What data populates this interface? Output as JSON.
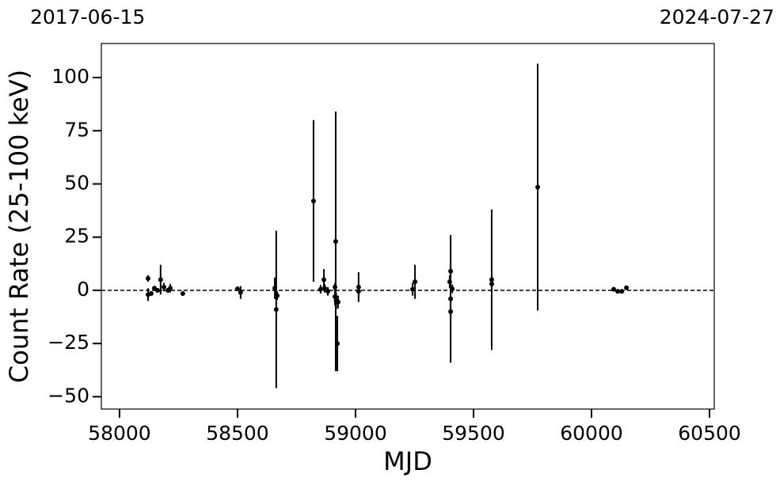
{
  "chart_data": {
    "type": "scatter",
    "top_left_label": "2017-06-15",
    "top_right_label": "2024-07-27",
    "x_label": "MJD",
    "y_label": "Count Rate (25-100 keV)",
    "x": [
      58121,
      58121,
      58134,
      58148,
      58161,
      58174,
      58188,
      58205,
      58215,
      58268,
      58500,
      58513,
      58658,
      58664,
      58668,
      58822,
      58852,
      58866,
      58869,
      58883,
      58913,
      58916,
      58913,
      58918,
      58923,
      58926,
      59013,
      59013,
      59242,
      59252,
      59399,
      59403,
      59403,
      59403,
      59410,
      59577,
      59577,
      59772,
      60094,
      60111,
      60128,
      60148
    ],
    "values": [
      5.6,
      -2,
      -1.5,
      1,
      0,
      5,
      1.5,
      0,
      1,
      -1.5,
      0.7,
      -1,
      1,
      -9,
      -2.5,
      42,
      0.5,
      5,
      1,
      -0.5,
      1.5,
      23,
      -3,
      -5,
      -25,
      -5.5,
      1.5,
      -0.5,
      0.5,
      4,
      4,
      -4,
      9,
      -10,
      0.7,
      5,
      3,
      48.5,
      0.5,
      -0.5,
      -0.5,
      1.2
    ],
    "errors": [
      1.5,
      3,
      1,
      1,
      1,
      7,
      2,
      1,
      2,
      1,
      1,
      3,
      5,
      37,
      2,
      38,
      2,
      5,
      2,
      2,
      2,
      61,
      4,
      4,
      13,
      3,
      7,
      2,
      3,
      8,
      3,
      30,
      2,
      2,
      2,
      33,
      4,
      58,
      1,
      1,
      1,
      1
    ],
    "color": "#000000",
    "reference_line": 0,
    "xlim": [
      57923,
      60520
    ],
    "ylim": [
      -55.8,
      116
    ],
    "xticks": [
      58000,
      58500,
      59000,
      59500,
      60000,
      60500
    ],
    "yticks": [
      {
        "value": -50,
        "label": "−50"
      },
      {
        "value": -25,
        "label": "−25"
      },
      0,
      25,
      50,
      75,
      100
    ]
  }
}
